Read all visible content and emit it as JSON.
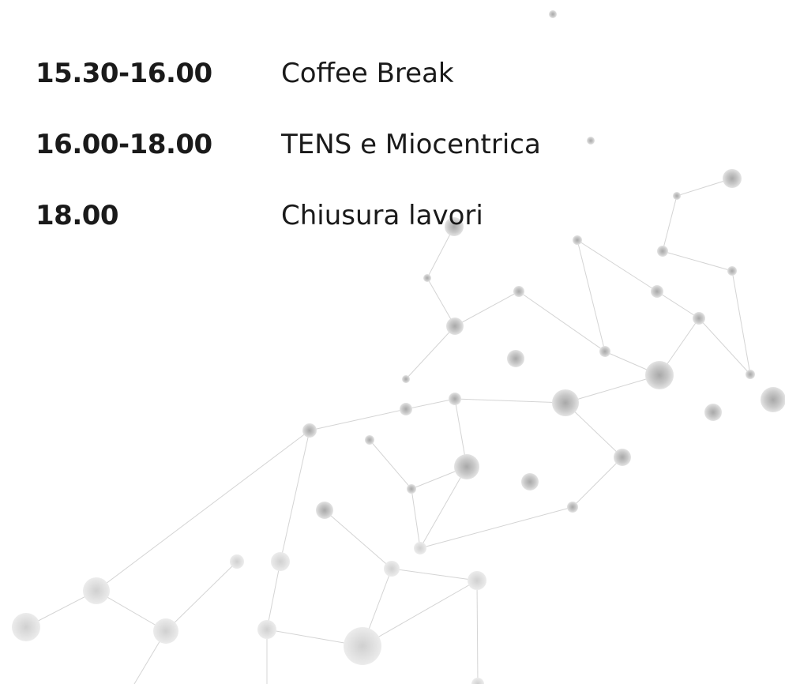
{
  "schedule": [
    {
      "time": "15.30-16.00",
      "title": "Coffee Break"
    },
    {
      "time": "16.00-18.00",
      "title": "TENS e Miocentrica"
    },
    {
      "time": "18.00",
      "title": "Chiusura lavori"
    }
  ]
}
